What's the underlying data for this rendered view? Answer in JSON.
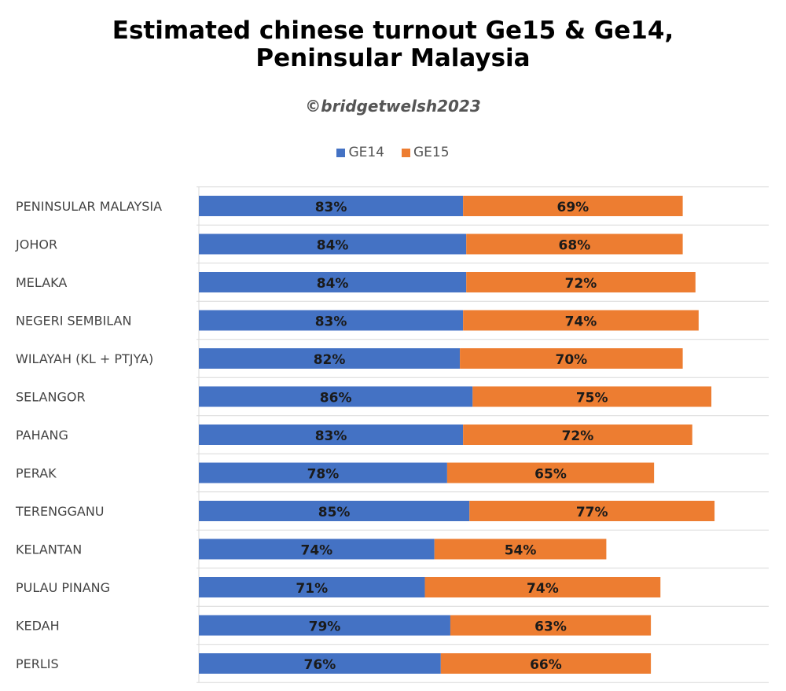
{
  "title_line1": "Estimated chinese turnout Ge15 & Ge14,",
  "title_line2": "Peninsular Malaysia",
  "credit": "©bridgetwelsh2023",
  "chart_data": {
    "type": "bar",
    "orientation": "horizontal",
    "stacked": true,
    "title": "Estimated chinese turnout Ge15 & Ge14, Peninsular Malaysia",
    "categories": [
      "PENINSULAR MALAYSIA",
      "JOHOR",
      "MELAKA",
      "NEGERI SEMBILAN",
      "WILAYAH (KL + PTJYA)",
      "SELANGOR",
      "PAHANG",
      "PERAK",
      "TERENGGANU",
      "KELANTAN",
      "PULAU PINANG",
      "KEDAH",
      "PERLIS"
    ],
    "series": [
      {
        "name": "GE14",
        "color": "#4472c4",
        "values": [
          83,
          84,
          84,
          83,
          82,
          86,
          83,
          78,
          85,
          74,
          71,
          79,
          76
        ],
        "labels": [
          "83%",
          "84%",
          "84%",
          "83%",
          "82%",
          "86%",
          "83%",
          "78%",
          "85%",
          "74%",
          "71%",
          "79%",
          "76%"
        ]
      },
      {
        "name": "GE15",
        "color": "#ed7d31",
        "values": [
          69,
          68,
          72,
          74,
          70,
          75,
          72,
          65,
          77,
          54,
          74,
          63,
          66
        ],
        "labels": [
          "69%",
          "68%",
          "72%",
          "74%",
          "70%",
          "75%",
          "72%",
          "65%",
          "77%",
          "54%",
          "74%",
          "63%",
          "66%"
        ]
      }
    ],
    "xlim": [
      0,
      180
    ],
    "grid": true,
    "legend_position": "top"
  }
}
